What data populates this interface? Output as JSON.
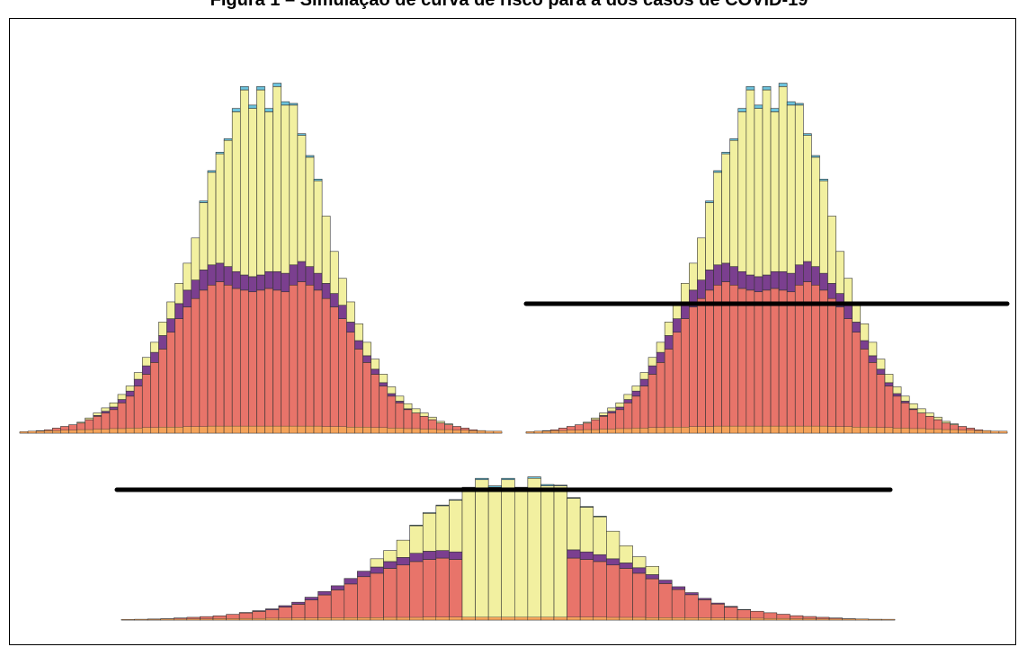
{
  "caption": "Figura 1 – Simulação de curva de risco para a dos casos de COVID-19",
  "colors": {
    "red": "#e8746a",
    "purple": "#7b3f8f",
    "yellow": "#f2f0a0",
    "cyan": "#6cc3dd",
    "orange": "#f4a35a",
    "outline": "#333333",
    "threshold": "#000000"
  },
  "chart_data": [
    {
      "type": "bar",
      "stacking": "stacked",
      "series_order": [
        "red",
        "purple",
        "yellow",
        "cyan"
      ],
      "red": [
        0.5,
        1,
        1.5,
        2,
        3,
        4,
        5,
        6,
        8,
        10,
        12,
        14,
        18,
        22,
        28,
        35,
        42,
        50,
        60,
        68,
        75,
        80,
        85,
        88,
        90,
        88,
        86,
        85,
        84,
        85,
        86,
        85,
        84,
        88,
        90,
        88,
        85,
        80,
        75,
        68,
        60,
        50,
        42,
        35,
        28,
        22,
        18,
        14,
        12,
        10,
        8,
        6,
        5,
        4,
        3,
        2,
        1.5,
        1,
        0.5
      ],
      "purple": [
        0,
        0,
        0,
        0,
        0,
        0,
        0,
        0,
        0,
        0.5,
        1,
        1.5,
        2,
        3,
        4,
        5,
        6,
        8,
        8,
        9,
        10,
        11,
        12,
        12,
        11,
        11,
        10,
        9,
        9,
        9,
        10,
        11,
        11,
        12,
        12,
        11,
        10,
        9,
        8,
        8,
        6,
        5,
        4,
        3,
        2,
        1.5,
        1,
        0.5,
        0,
        0,
        0,
        0,
        0,
        0,
        0,
        0,
        0,
        0,
        0
      ],
      "yellow": [
        0,
        0,
        0,
        0,
        0,
        0,
        0,
        0.5,
        1,
        1.5,
        2,
        2.5,
        3,
        3,
        4,
        5,
        6,
        8,
        10,
        12,
        16,
        25,
        40,
        55,
        65,
        75,
        95,
        110,
        100,
        110,
        95,
        110,
        100,
        95,
        75,
        65,
        55,
        40,
        25,
        16,
        12,
        10,
        8,
        6,
        5,
        4,
        3,
        3,
        2.5,
        2,
        1.5,
        1,
        0.5,
        0,
        0,
        0,
        0,
        0,
        0
      ],
      "cyan": [
        0,
        0,
        0,
        0,
        0,
        0,
        0,
        0,
        0,
        0,
        0,
        0,
        0,
        0,
        0,
        0,
        0,
        0,
        0,
        0,
        0,
        0,
        1,
        1,
        1,
        1,
        2,
        2,
        2,
        2,
        2,
        2,
        2,
        1,
        1,
        1,
        1,
        0,
        0,
        0,
        0,
        0,
        0,
        0,
        0,
        0,
        0,
        0,
        0,
        0,
        0,
        0,
        0,
        0,
        0,
        0,
        0,
        0,
        0
      ],
      "baseline_orange": [
        1.5,
        2,
        2,
        2.5,
        2.5,
        3,
        3,
        3.5,
        3.5,
        4,
        4,
        4.5,
        4.5,
        5,
        5,
        5.5,
        5.5,
        6,
        6,
        6,
        6.5,
        6.5,
        6.5,
        7,
        7,
        7,
        7,
        7,
        7,
        7,
        7,
        7,
        7,
        7,
        7,
        7,
        7,
        6.5,
        6.5,
        6.5,
        6,
        6,
        6,
        5.5,
        5.5,
        5,
        5,
        4.5,
        4.5,
        4,
        4,
        3.5,
        3.5,
        3,
        3,
        2.5,
        2.5,
        2,
        2
      ],
      "threshold": null
    },
    {
      "type": "bar",
      "stacking": "stacked",
      "series_order": [
        "red",
        "purple",
        "yellow",
        "cyan"
      ],
      "same_data_as": 0,
      "threshold": 100
    },
    {
      "type": "bar",
      "stacking": "stacked",
      "series_order": [
        "red",
        "purple",
        "yellow",
        "cyan"
      ],
      "same_data_as": 0,
      "threshold": 135,
      "groups": [
        {
          "from": 0,
          "to": 18,
          "mode": "red-dominant"
        },
        {
          "from": 19,
          "to": 25,
          "mode": "mixed"
        },
        {
          "from": 26,
          "to": 33,
          "mode": "yellow-only"
        },
        {
          "from": 34,
          "to": 40,
          "mode": "mixed"
        },
        {
          "from": 41,
          "to": 58,
          "mode": "red-dominant"
        }
      ]
    }
  ]
}
